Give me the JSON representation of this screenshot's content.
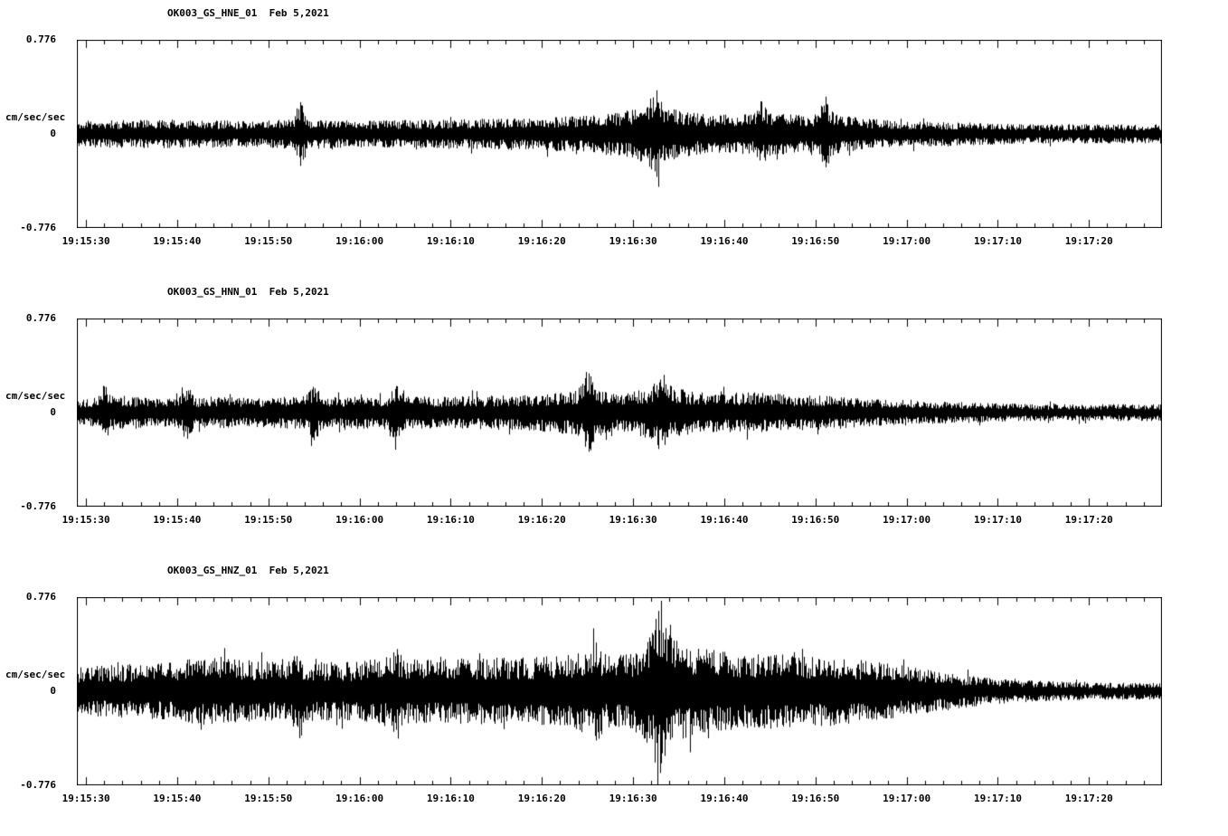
{
  "figure": {
    "bg": "#ffffff",
    "fg": "#000000"
  },
  "axis": {
    "duration_s": 119,
    "full_scale": 0.776,
    "major_tick_s": 10,
    "minor_tick_s": 2,
    "tick_offsets_s": [
      1,
      11,
      21,
      31,
      41,
      51,
      61,
      71,
      81,
      91,
      101,
      111
    ],
    "x_tick_labels": [
      "19:15:30",
      "19:15:40",
      "19:15:50",
      "19:16:00",
      "19:16:10",
      "19:16:20",
      "19:16:30",
      "19:16:40",
      "19:16:50",
      "19:17:00",
      "19:17:10",
      "19:17:20"
    ]
  },
  "chart_data": [
    {
      "type": "line",
      "title": "OK003_GS_HNE_01  Feb 5,2021",
      "ylabel": "cm/sec/sec",
      "ylim": [
        -0.776,
        0.776
      ],
      "y_ticks": [
        "0.776",
        "0",
        "-0.776"
      ],
      "seed": 11,
      "envelope": [
        [
          0,
          0.11
        ],
        [
          10,
          0.12
        ],
        [
          20,
          0.11
        ],
        [
          25,
          0.13
        ],
        [
          30,
          0.11
        ],
        [
          40,
          0.12
        ],
        [
          48,
          0.13
        ],
        [
          55,
          0.15
        ],
        [
          60,
          0.19
        ],
        [
          63,
          0.26
        ],
        [
          65,
          0.22
        ],
        [
          68,
          0.17
        ],
        [
          72,
          0.16
        ],
        [
          76,
          0.18
        ],
        [
          80,
          0.15
        ],
        [
          83,
          0.18
        ],
        [
          86,
          0.13
        ],
        [
          90,
          0.11
        ],
        [
          95,
          0.1
        ],
        [
          100,
          0.09
        ],
        [
          105,
          0.08
        ],
        [
          110,
          0.08
        ],
        [
          119,
          0.08
        ]
      ],
      "spikes": [
        [
          24.5,
          0.14
        ],
        [
          63.5,
          0.16
        ],
        [
          75,
          0.1
        ],
        [
          82,
          0.12
        ]
      ]
    },
    {
      "type": "line",
      "title": "OK003_GS_HNN_01  Feb 5,2021",
      "ylabel": "cm/sec/sec",
      "ylim": [
        -0.776,
        0.776
      ],
      "y_ticks": [
        "0.776",
        "0",
        "-0.776"
      ],
      "seed": 22,
      "envelope": [
        [
          0,
          0.12
        ],
        [
          5,
          0.14
        ],
        [
          10,
          0.12
        ],
        [
          15,
          0.13
        ],
        [
          20,
          0.12
        ],
        [
          25,
          0.14
        ],
        [
          30,
          0.13
        ],
        [
          35,
          0.14
        ],
        [
          40,
          0.13
        ],
        [
          45,
          0.14
        ],
        [
          50,
          0.15
        ],
        [
          54,
          0.18
        ],
        [
          56,
          0.22
        ],
        [
          58,
          0.17
        ],
        [
          60,
          0.16
        ],
        [
          62,
          0.2
        ],
        [
          64,
          0.24
        ],
        [
          66,
          0.2
        ],
        [
          68,
          0.17
        ],
        [
          70,
          0.16
        ],
        [
          74,
          0.17
        ],
        [
          78,
          0.15
        ],
        [
          82,
          0.14
        ],
        [
          86,
          0.12
        ],
        [
          90,
          0.1
        ],
        [
          95,
          0.09
        ],
        [
          100,
          0.08
        ],
        [
          105,
          0.07
        ],
        [
          110,
          0.07
        ],
        [
          119,
          0.07
        ]
      ],
      "spikes": [
        [
          3,
          0.1
        ],
        [
          12,
          0.1
        ],
        [
          26,
          0.1
        ],
        [
          35,
          0.12
        ],
        [
          56,
          0.14
        ],
        [
          64,
          0.12
        ]
      ]
    },
    {
      "type": "line",
      "title": "OK003_GS_HNZ_01  Feb 5,2021",
      "ylabel": "cm/sec/sec",
      "ylim": [
        -0.776,
        0.776
      ],
      "y_ticks": [
        "0.776",
        "0",
        "-0.776"
      ],
      "seed": 33,
      "envelope": [
        [
          0,
          0.2
        ],
        [
          5,
          0.22
        ],
        [
          10,
          0.24
        ],
        [
          14,
          0.28
        ],
        [
          18,
          0.26
        ],
        [
          22,
          0.24
        ],
        [
          26,
          0.25
        ],
        [
          30,
          0.24
        ],
        [
          34,
          0.28
        ],
        [
          38,
          0.26
        ],
        [
          42,
          0.27
        ],
        [
          46,
          0.28
        ],
        [
          50,
          0.28
        ],
        [
          54,
          0.3
        ],
        [
          56,
          0.36
        ],
        [
          58,
          0.3
        ],
        [
          60,
          0.3
        ],
        [
          62,
          0.38
        ],
        [
          63,
          0.5
        ],
        [
          64,
          0.62
        ],
        [
          65,
          0.48
        ],
        [
          66,
          0.4
        ],
        [
          68,
          0.36
        ],
        [
          70,
          0.34
        ],
        [
          73,
          0.32
        ],
        [
          76,
          0.31
        ],
        [
          80,
          0.3
        ],
        [
          84,
          0.28
        ],
        [
          88,
          0.24
        ],
        [
          92,
          0.2
        ],
        [
          96,
          0.15
        ],
        [
          100,
          0.11
        ],
        [
          104,
          0.09
        ],
        [
          108,
          0.08
        ],
        [
          112,
          0.07
        ],
        [
          119,
          0.07
        ]
      ],
      "spikes": [
        [
          24,
          0.08
        ],
        [
          35,
          0.08
        ],
        [
          57,
          0.1
        ],
        [
          64,
          0.18
        ]
      ]
    }
  ]
}
